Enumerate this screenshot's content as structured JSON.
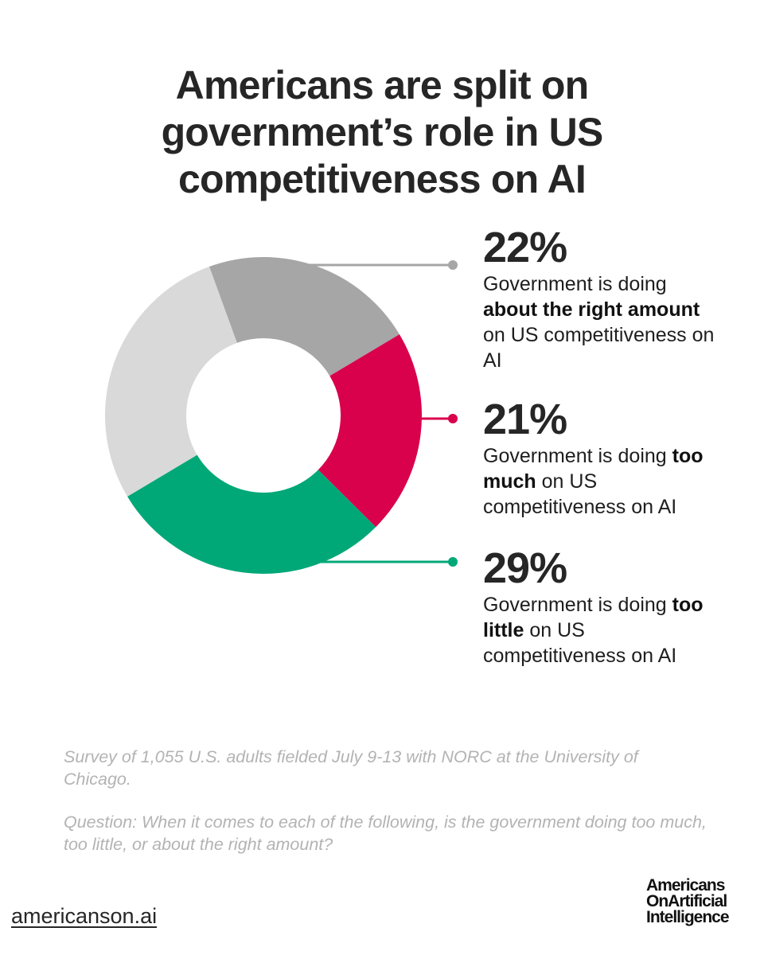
{
  "title_lines": [
    "Americans are split on",
    "government’s role in US",
    "competitiveness on AI"
  ],
  "chart_data": {
    "type": "pie",
    "variant": "donut",
    "title": "Americans are split on government’s role in US competitiveness on AI",
    "slices": [
      {
        "label": "about the right amount",
        "value": 22,
        "display": "22%",
        "color": "#a6a6a6"
      },
      {
        "label": "too much",
        "value": 21,
        "display": "21%",
        "color": "#d9004c"
      },
      {
        "label": "too little",
        "value": 29,
        "display": "29%",
        "color": "#00a878"
      },
      {
        "value": 28,
        "color": "#d9d9d9"
      }
    ]
  },
  "annotations": [
    {
      "pct": "22%",
      "pre": "Government is doing ",
      "bold": "about the right amount",
      "post": " on US competitiveness on AI",
      "color": "#a6a6a6"
    },
    {
      "pct": "21%",
      "pre": "Government is doing ",
      "bold": "too much",
      "post": " on US competitiveness on AI",
      "color": "#d9004c"
    },
    {
      "pct": "29%",
      "pre": "Government is doing ",
      "bold": "too little",
      "post": " on US competitiveness on AI",
      "color": "#00a878"
    }
  ],
  "notes": {
    "survey": "Survey of 1,055 U.S. adults fielded July 9-13 with NORC at the University of Chicago.",
    "question": "Question: When it comes to each of the following, is the government doing too much, too little, or about the right amount?"
  },
  "footer": {
    "link": "americanson.ai",
    "logo_lines": [
      "Americans",
      "OnArtificial",
      "Intelligence"
    ]
  }
}
